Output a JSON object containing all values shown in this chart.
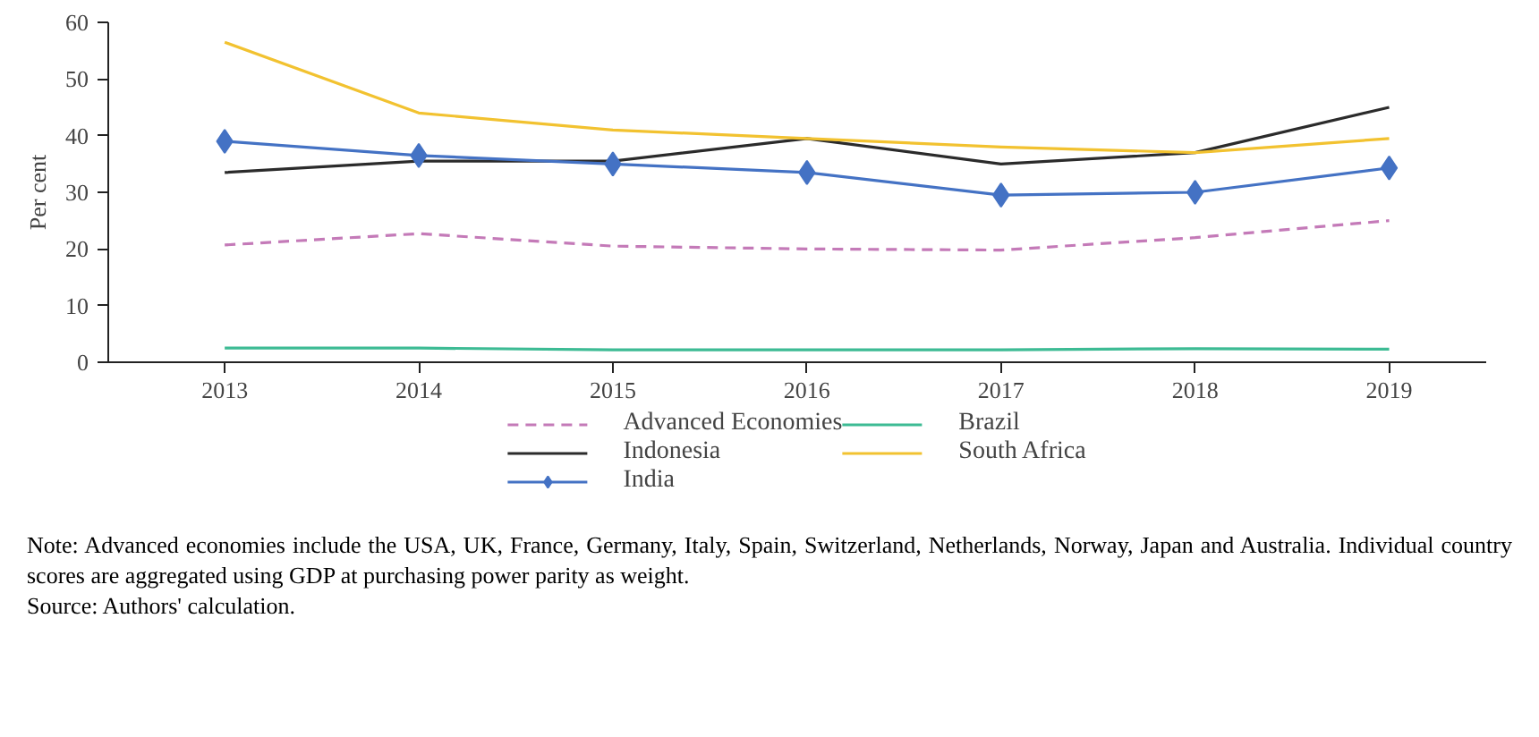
{
  "chart_data": {
    "type": "line",
    "ylabel": "Per cent",
    "x": [
      2013,
      2014,
      2015,
      2016,
      2017,
      2018,
      2019
    ],
    "xlim": [
      2012.4,
      2019.5
    ],
    "xticks": [
      2013,
      2014,
      2015,
      2016,
      2017,
      2018,
      2019
    ],
    "ylim": [
      0,
      60
    ],
    "yticks": [
      0,
      10,
      20,
      30,
      40,
      50,
      60
    ],
    "grid": false,
    "legend": "bottom",
    "series": [
      {
        "name": "Advanced Economies",
        "color": "#c47ab8",
        "line_style": "dashed",
        "marker": "none",
        "values": [
          20.7,
          22.7,
          20.5,
          20,
          19.8,
          22,
          25
        ]
      },
      {
        "name": "Brazil",
        "color": "#3dbb94",
        "line_style": "solid",
        "marker": "none",
        "values": [
          2.5,
          2.5,
          2.2,
          2.2,
          2.2,
          2.4,
          2.3
        ]
      },
      {
        "name": "Indonesia",
        "color": "#2b2b2b",
        "line_style": "solid",
        "marker": "none",
        "values": [
          33.5,
          35.5,
          35.5,
          39.5,
          35,
          37,
          45
        ]
      },
      {
        "name": "South Africa",
        "color": "#f2c230",
        "line_style": "solid",
        "marker": "none",
        "values": [
          56.5,
          44,
          41,
          39.5,
          38,
          37,
          39.5
        ]
      },
      {
        "name": "India",
        "color": "#4472c4",
        "line_style": "solid",
        "marker": "diamond",
        "values": [
          39,
          36.5,
          35,
          33.5,
          29.5,
          30,
          34.3
        ]
      }
    ],
    "annotations": [
      "Note: Advanced economies include the USA, UK, France, Germany, Italy, Spain, Switzerland, Netherlands, Norway, Japan and Australia. Individual country scores are aggregated using GDP at purchasing power parity as weight.",
      "Source: Authors' calculation."
    ]
  }
}
